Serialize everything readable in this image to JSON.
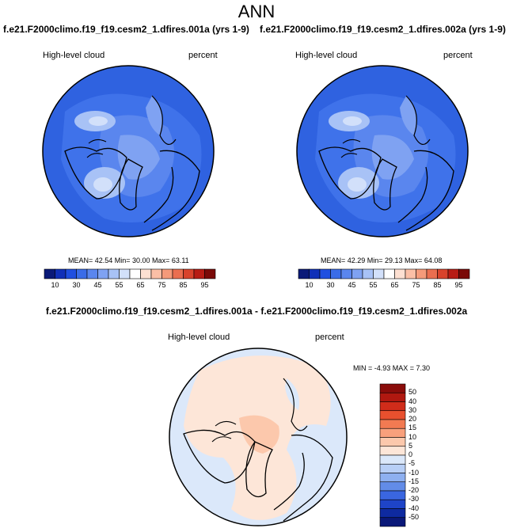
{
  "title": "ANN",
  "panels": [
    {
      "case_title": "f.e21.F2000climo.f19_f19.cesm2_1.dfires.001a (yrs 1-9)",
      "variable": "High-level cloud",
      "units": "percent",
      "stats": {
        "mean": "42.54",
        "min": "30.00",
        "max": "63.11"
      },
      "stats_text": "MEAN=  42.54   Min=  30.00   Max=  63.11"
    },
    {
      "case_title": "f.e21.F2000climo.f19_f19.cesm2_1.dfires.002a (yrs 1-9)",
      "variable": "High-level cloud",
      "units": "percent",
      "stats": {
        "mean": "42.29",
        "min": "29.13",
        "max": "64.08"
      },
      "stats_text": "MEAN=  42.29   Min=  29.13   Max=  64.08"
    }
  ],
  "diff_panel": {
    "title": "f.e21.F2000climo.f19_f19.cesm2_1.dfires.001a - f.e21.F2000climo.f19_f19.cesm2_1.dfires.002a",
    "variable": "High-level cloud",
    "units": "percent",
    "stats": {
      "min": "-4.93",
      "max": "7.30"
    },
    "stats_text": "MIN =  -4.93  MAX =   7.30"
  },
  "chart_data": [
    {
      "type": "heatmap",
      "projection": "north polar stereographic",
      "title": "High-level cloud",
      "units": "percent",
      "colorbar": {
        "orientation": "horizontal",
        "levels": [
          10,
          30,
          45,
          55,
          65,
          75,
          85,
          95
        ],
        "tick_labels": [
          "10",
          "30",
          "45",
          "55",
          "65",
          "75",
          "85",
          "95"
        ],
        "colors": [
          "#0a1a78",
          "#1030b8",
          "#1f4fe0",
          "#3a6ce8",
          "#5a86ee",
          "#7fa2f2",
          "#a8c2f6",
          "#d2e0fa",
          "#ffffff",
          "#fde0d2",
          "#fbbfa6",
          "#f59a7a",
          "#ea6e50",
          "#d8432c",
          "#b71c14",
          "#7a0a08"
        ]
      },
      "mean": 42.54,
      "min": 30.0,
      "max": 63.11
    },
    {
      "type": "heatmap",
      "projection": "north polar stereographic",
      "title": "High-level cloud",
      "units": "percent",
      "colorbar": {
        "orientation": "horizontal",
        "levels": [
          10,
          30,
          45,
          55,
          65,
          75,
          85,
          95
        ],
        "tick_labels": [
          "10",
          "30",
          "45",
          "55",
          "65",
          "75",
          "85",
          "95"
        ],
        "colors": [
          "#0a1a78",
          "#1030b8",
          "#1f4fe0",
          "#3a6ce8",
          "#5a86ee",
          "#7fa2f2",
          "#a8c2f6",
          "#d2e0fa",
          "#ffffff",
          "#fde0d2",
          "#fbbfa6",
          "#f59a7a",
          "#ea6e50",
          "#d8432c",
          "#b71c14",
          "#7a0a08"
        ]
      },
      "mean": 42.29,
      "min": 29.13,
      "max": 64.08
    },
    {
      "type": "heatmap",
      "projection": "north polar stereographic",
      "title": "High-level cloud",
      "units": "percent",
      "colorbar": {
        "orientation": "vertical",
        "levels": [
          50,
          40,
          30,
          20,
          15,
          10,
          5,
          0,
          -5,
          -10,
          -15,
          -20,
          -30,
          -40,
          -50
        ],
        "tick_labels": [
          "50",
          "40",
          "30",
          "20",
          "15",
          "10",
          "5",
          "0",
          "-5",
          "-10",
          "-15",
          "-20",
          "-30",
          "-40",
          "-50"
        ],
        "colors": [
          "#8a0c0a",
          "#b01810",
          "#d02c1a",
          "#e8502e",
          "#f27a52",
          "#f8a07c",
          "#fcc8ac",
          "#fde6d8",
          "#dbe8fa",
          "#b8cff6",
          "#8eb0f0",
          "#628ce8",
          "#3a66e0",
          "#1e44c8",
          "#0e2aa0",
          "#0a1878"
        ]
      },
      "min": -4.93,
      "max": 7.3
    }
  ]
}
